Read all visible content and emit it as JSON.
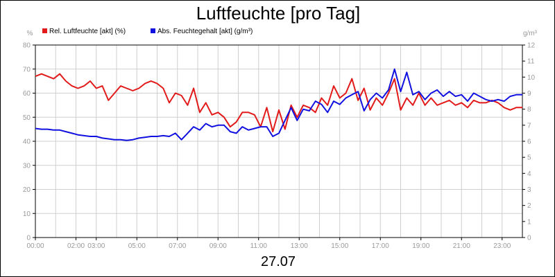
{
  "chart_data": {
    "type": "line",
    "title": "Luftfeuchte [pro Tag]",
    "date": "27.07",
    "y_left_unit": "%",
    "y_right_unit": "g/m³",
    "y_left_lim": [
      0,
      80
    ],
    "y_right_lim": [
      0,
      12
    ],
    "y_left_ticks": [
      "0",
      "10",
      "20",
      "30",
      "40",
      "50",
      "60",
      "70",
      "80"
    ],
    "y_right_ticks": [
      "0",
      "1",
      "2",
      "3",
      "4",
      "5",
      "6",
      "7",
      "8",
      "9",
      "10",
      "11",
      "12"
    ],
    "x_tick_labels": [
      "00:00",
      "02:00",
      "03:00",
      "05:00",
      "07:00",
      "09:00",
      "11:00",
      "13:00",
      "15:00",
      "17:00",
      "19:00",
      "21:00",
      "23:00"
    ],
    "x_tick_hours": [
      0,
      2,
      3,
      5,
      7,
      9,
      11,
      13,
      15,
      17,
      19,
      21,
      23
    ],
    "grid": true,
    "legend_position": "top-left",
    "series": [
      {
        "name": "Rel. Luftfeuchte [akt] (%)",
        "color": "#e21a1a",
        "axis": "left",
        "x": [
          0,
          0.3,
          0.6,
          0.9,
          1.2,
          1.5,
          1.8,
          2.1,
          2.4,
          2.7,
          3.0,
          3.3,
          3.6,
          3.9,
          4.2,
          4.5,
          4.8,
          5.1,
          5.4,
          5.7,
          6.0,
          6.3,
          6.6,
          6.9,
          7.2,
          7.5,
          7.8,
          8.1,
          8.4,
          8.7,
          9.0,
          9.3,
          9.6,
          9.9,
          10.2,
          10.5,
          10.8,
          11.1,
          11.4,
          11.7,
          12.0,
          12.3,
          12.6,
          12.9,
          13.2,
          13.5,
          13.8,
          14.1,
          14.4,
          14.7,
          15.0,
          15.3,
          15.6,
          15.9,
          16.2,
          16.5,
          16.8,
          17.1,
          17.4,
          17.7,
          18.0,
          18.3,
          18.6,
          18.9,
          19.2,
          19.5,
          19.8,
          20.1,
          20.4,
          20.7,
          21.0,
          21.3,
          21.6,
          21.9,
          22.2,
          22.5,
          22.8,
          23.1,
          23.4,
          23.7,
          24.0
        ],
        "values": [
          67,
          68,
          67,
          66,
          68,
          65,
          63,
          62,
          63,
          65,
          62,
          63,
          57,
          60,
          63,
          62,
          61,
          62,
          64,
          65,
          64,
          62,
          56,
          60,
          59,
          55,
          62,
          52,
          56,
          51,
          52,
          50,
          46,
          48,
          52,
          52,
          51,
          46,
          54,
          44,
          53,
          45,
          55,
          50,
          55,
          54,
          52,
          58,
          55,
          63,
          58,
          60,
          66,
          57,
          62,
          53,
          58,
          55,
          60,
          66,
          53,
          58,
          55,
          60,
          55,
          58,
          55,
          56,
          57,
          55,
          56,
          54,
          57,
          56,
          56,
          57,
          56,
          54,
          53,
          54,
          54
        ]
      },
      {
        "name": "Abs. Feuchtegehalt [akt] (g/m³)",
        "color": "#1010e0",
        "axis": "right",
        "x": [
          0,
          0.3,
          0.6,
          0.9,
          1.2,
          1.5,
          1.8,
          2.1,
          2.4,
          2.7,
          3.0,
          3.3,
          3.6,
          3.9,
          4.2,
          4.5,
          4.8,
          5.1,
          5.4,
          5.7,
          6.0,
          6.3,
          6.6,
          6.9,
          7.2,
          7.5,
          7.8,
          8.1,
          8.4,
          8.7,
          9.0,
          9.3,
          9.6,
          9.9,
          10.2,
          10.5,
          10.8,
          11.1,
          11.4,
          11.7,
          12.0,
          12.3,
          12.6,
          12.9,
          13.2,
          13.5,
          13.8,
          14.1,
          14.4,
          14.7,
          15.0,
          15.3,
          15.6,
          15.9,
          16.2,
          16.5,
          16.8,
          17.1,
          17.4,
          17.7,
          18.0,
          18.3,
          18.6,
          18.9,
          19.2,
          19.5,
          19.8,
          20.1,
          20.4,
          20.7,
          21.0,
          21.3,
          21.6,
          21.9,
          22.2,
          22.5,
          22.8,
          23.1,
          23.4,
          23.7,
          24.0
        ],
        "values": [
          6.8,
          6.75,
          6.75,
          6.7,
          6.7,
          6.6,
          6.5,
          6.4,
          6.35,
          6.3,
          6.3,
          6.2,
          6.15,
          6.1,
          6.1,
          6.05,
          6.1,
          6.2,
          6.25,
          6.3,
          6.3,
          6.35,
          6.3,
          6.5,
          6.1,
          6.5,
          6.9,
          6.7,
          7.1,
          6.9,
          7.0,
          7.0,
          6.6,
          6.5,
          6.9,
          6.7,
          6.8,
          6.9,
          6.9,
          6.3,
          6.5,
          7.3,
          8.1,
          7.3,
          8.0,
          7.9,
          8.5,
          8.3,
          7.8,
          8.5,
          8.3,
          8.7,
          8.9,
          9.1,
          7.9,
          8.6,
          9.0,
          8.7,
          9.2,
          10.5,
          9.1,
          10.3,
          8.9,
          9.1,
          8.6,
          9.0,
          9.2,
          8.8,
          9.1,
          8.8,
          8.9,
          8.5,
          9.0,
          8.8,
          8.6,
          8.5,
          8.6,
          8.5,
          8.8,
          8.9,
          8.9
        ]
      }
    ]
  }
}
